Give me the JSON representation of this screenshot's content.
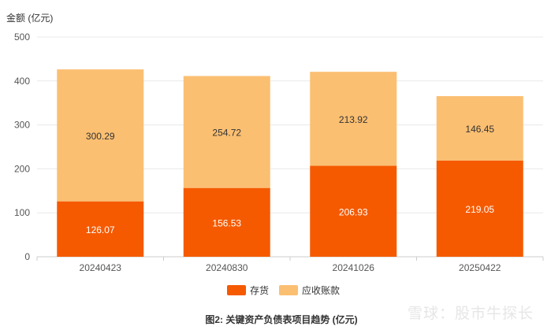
{
  "chart_data": {
    "type": "bar",
    "stacked": true,
    "ylabel": "金额 (亿元)",
    "ylim": [
      0,
      500
    ],
    "yticks": [
      0,
      100,
      200,
      300,
      400,
      500
    ],
    "grid": true,
    "legend_position": "bottom",
    "categories": [
      "20240423",
      "20240830",
      "20241026",
      "20250422"
    ],
    "series": [
      {
        "name": "存货",
        "color": "#f55a00",
        "label_color": "#ffffff",
        "values": [
          126.07,
          156.53,
          206.93,
          219.05
        ]
      },
      {
        "name": "应收账款",
        "color": "#fbbf72",
        "label_color": "#333333",
        "values": [
          300.29,
          254.72,
          213.92,
          146.45
        ]
      }
    ],
    "caption": "图2: 关键资产负债表项目趋势 (亿元)"
  },
  "watermark": "雪球：股市牛探长"
}
